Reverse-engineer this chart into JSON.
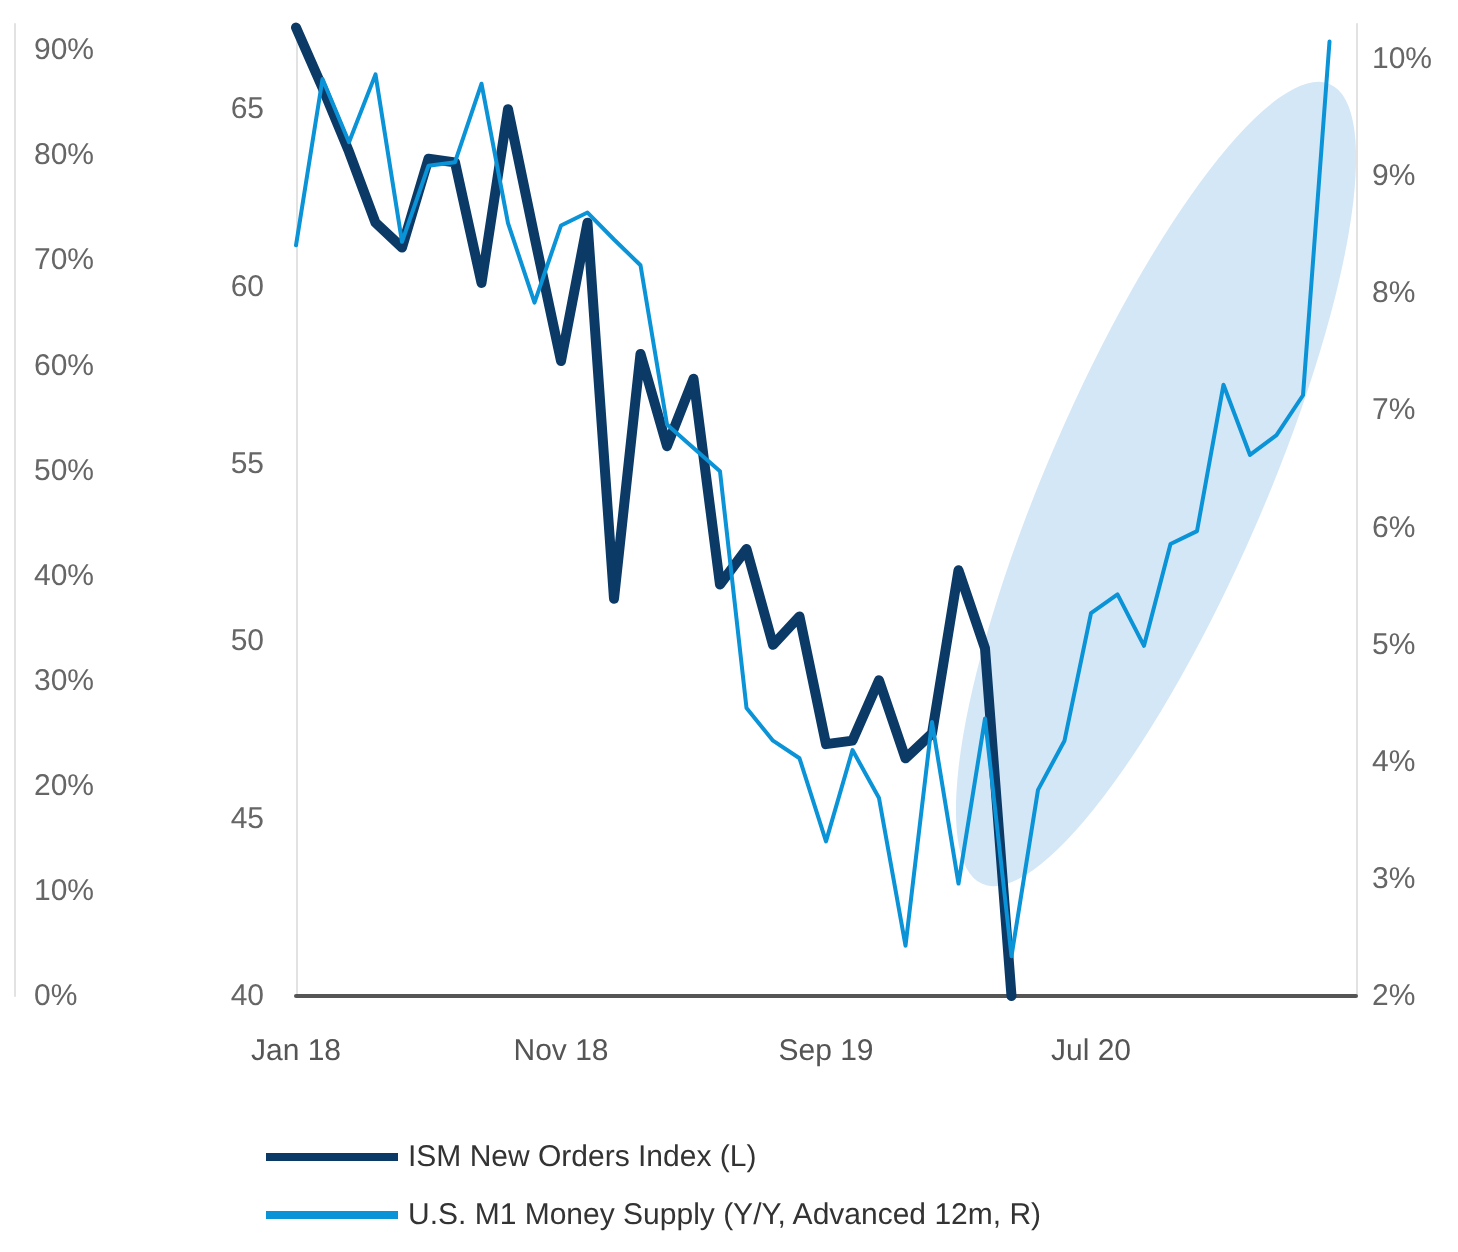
{
  "chart_data": {
    "type": "line",
    "categories": [
      "Jan 18",
      null,
      null,
      null,
      null,
      null,
      null,
      null,
      null,
      null,
      "Nov 18",
      null,
      null,
      null,
      null,
      null,
      null,
      null,
      null,
      null,
      "Sep 19",
      null,
      null,
      null,
      null,
      null,
      null,
      null,
      null,
      null,
      "Jul 20",
      null,
      null,
      null,
      null,
      null,
      null,
      null,
      null,
      null,
      null
    ],
    "series": [
      {
        "name": "ISM New Orders Index (L)",
        "color": "#0b3a66",
        "values": [
          67.3,
          65.6,
          63.8,
          61.8,
          61.1,
          63.6,
          63.5,
          60.1,
          65.0,
          61.4,
          57.9,
          61.8,
          51.2,
          58.1,
          55.5,
          57.4,
          51.6,
          52.6,
          49.9,
          50.7,
          47.1,
          47.2,
          48.9,
          46.7,
          47.4,
          52.0,
          49.8,
          40,
          null,
          null,
          null,
          null,
          null,
          null,
          null,
          null,
          null,
          null,
          null,
          null,
          null
        ]
      },
      {
        "name": "U.S. M1 Money Supply (Y/Y, Advanced 12m, R)",
        "color": "#0a93d6",
        "axis": "y2",
        "values": [
          8.41,
          9.83,
          9.29,
          9.87,
          8.44,
          9.09,
          9.12,
          9.79,
          8.6,
          7.92,
          8.58,
          8.69,
          8.46,
          8.24,
          6.88,
          6.68,
          6.48,
          4.46,
          4.18,
          4.03,
          3.32,
          4.1,
          3.69,
          2.43,
          4.34,
          2.96,
          4.37,
          2.34,
          3.76,
          4.18,
          5.27,
          5.43,
          4.99,
          5.86,
          5.97,
          7.22,
          6.62,
          6.79,
          7.13,
          10.15,
          null
        ]
      }
    ],
    "ylim": [
      40,
      67.4
    ],
    "yticks": [
      40,
      45,
      50,
      55,
      60,
      65
    ],
    "y2lim": [
      2,
      10.3
    ],
    "y2ticks": [
      {
        "value": 2,
        "label": "2%"
      },
      {
        "value": 3,
        "label": "3%"
      },
      {
        "value": 4,
        "label": "4%"
      },
      {
        "value": 5,
        "label": "5%"
      },
      {
        "value": 6,
        "label": "6%"
      },
      {
        "value": 7,
        "label": "7%"
      },
      {
        "value": 8,
        "label": "8%"
      },
      {
        "value": 9,
        "label": "9%"
      },
      {
        "value": 10,
        "label": "10%"
      }
    ],
    "y3lim": [
      0,
      92.5
    ],
    "y3ticks": [
      {
        "value": 0,
        "label": "0%"
      },
      {
        "value": 10,
        "label": "10%"
      },
      {
        "value": 20,
        "label": "20%"
      },
      {
        "value": 30,
        "label": "30%"
      },
      {
        "value": 40,
        "label": "40%"
      },
      {
        "value": 50,
        "label": "50%"
      },
      {
        "value": 60,
        "label": "60%"
      },
      {
        "value": 70,
        "label": "70%"
      },
      {
        "value": 80,
        "label": "80%"
      },
      {
        "value": 90,
        "label": "90%"
      }
    ],
    "legend": "bottom",
    "grid": false
  }
}
